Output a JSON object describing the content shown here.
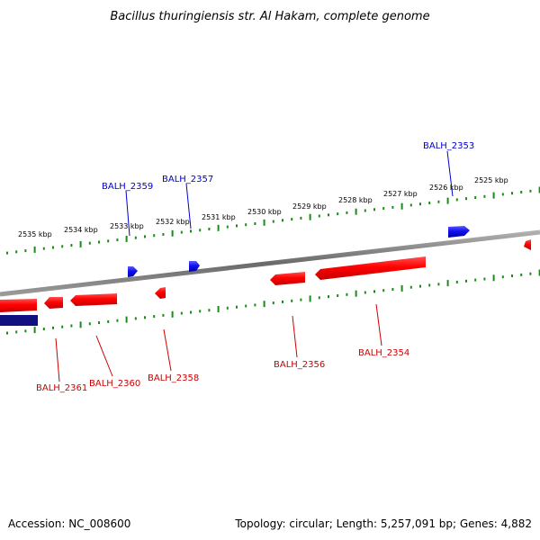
{
  "title": "Bacillus thuringiensis str. Al Hakam, complete genome",
  "footer": {
    "accession": "Accession: NC_008600",
    "summary": "Topology: circular; Length: 5,257,091 bp; Genes: 4,882"
  },
  "colors": {
    "forward_strand": "#1010ee",
    "reverse_strand": "#ee0000",
    "forward_label": "#0000cc",
    "reverse_label": "#cc0000",
    "backbone": "#7a7a7a",
    "ticks": "#1a8a1a",
    "dark_block": "#101080"
  },
  "ticks": [
    {
      "label": "2535 kbp"
    },
    {
      "label": "2534 kbp"
    },
    {
      "label": "2533 kbp"
    },
    {
      "label": "2532 kbp"
    },
    {
      "label": "2531 kbp"
    },
    {
      "label": "2530 kbp"
    },
    {
      "label": "2529 kbp"
    },
    {
      "label": "2528 kbp"
    },
    {
      "label": "2527 kbp"
    },
    {
      "label": "2526 kbp"
    },
    {
      "label": "2525 kbp"
    }
  ],
  "genes": [
    {
      "name": "BALH_2353",
      "strand": "forward"
    },
    {
      "name": "BALH_2354",
      "strand": "reverse"
    },
    {
      "name": "BALH_2356",
      "strand": "reverse"
    },
    {
      "name": "BALH_2357",
      "strand": "forward"
    },
    {
      "name": "BALH_2358",
      "strand": "reverse"
    },
    {
      "name": "BALH_2359",
      "strand": "forward"
    },
    {
      "name": "BALH_2360",
      "strand": "reverse"
    },
    {
      "name": "BALH_2361",
      "strand": "reverse"
    }
  ]
}
